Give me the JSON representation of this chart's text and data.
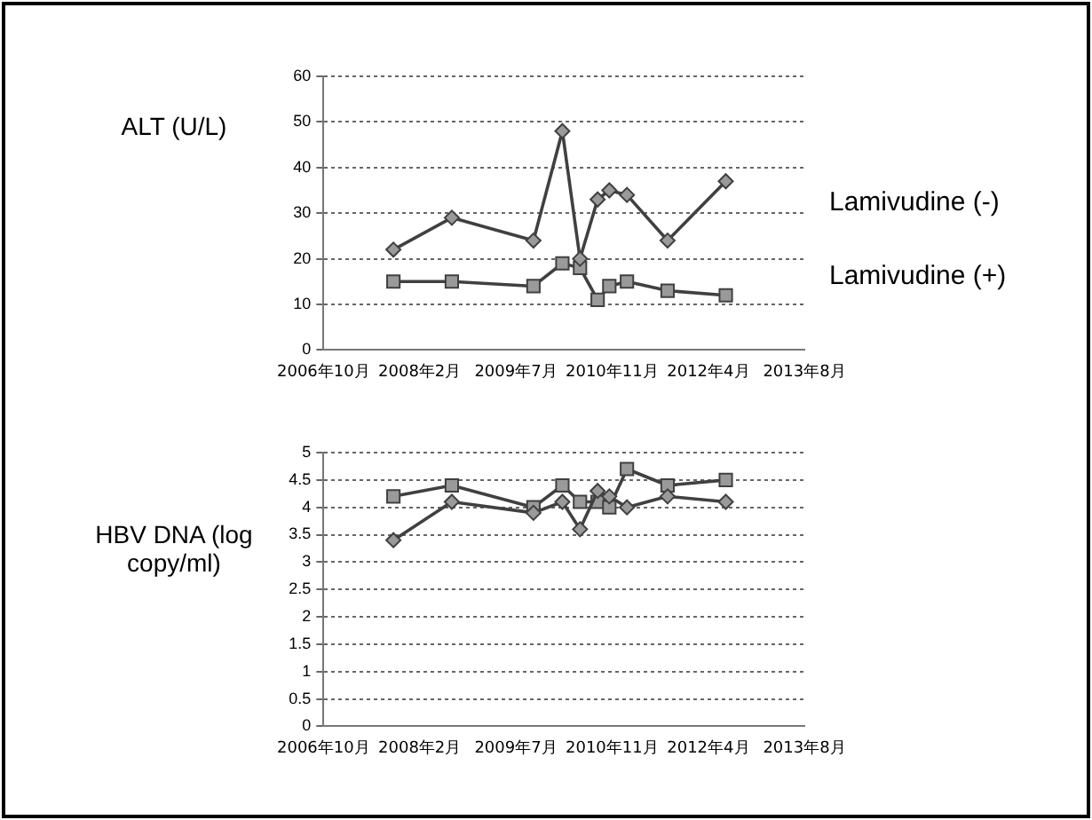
{
  "chart_data": [
    {
      "type": "line",
      "ylabel": "ALT (U/L)",
      "x": [
        "2007-10",
        "2008-08",
        "2009-10",
        "2010-03",
        "2010-06",
        "2010-09",
        "2010-11",
        "2011-02",
        "2011-09",
        "2012-07"
      ],
      "series": [
        {
          "name": "Lamivudine (-)",
          "color": "#404040",
          "marker": "diamond",
          "values": [
            22,
            29,
            24,
            48,
            20,
            33,
            35,
            34,
            24,
            37
          ]
        },
        {
          "name": "Lamivudine (+)",
          "color": "#404040",
          "marker": "square",
          "values": [
            15,
            15,
            14,
            19,
            18,
            11,
            14,
            15,
            13,
            12
          ]
        }
      ],
      "xlim": [
        "2006-10-01",
        "2013-08-15"
      ],
      "xticks": [
        {
          "value": "2006-10-01",
          "label": "2006年10月"
        },
        {
          "value": "2008-02-15",
          "label": "2008年2月"
        },
        {
          "value": "2009-07-01",
          "label": "2009年7月"
        },
        {
          "value": "2010-11-15",
          "label": "2010年11月"
        },
        {
          "value": "2012-04-01",
          "label": "2012年4月"
        },
        {
          "value": "2013-08-15",
          "label": "2013年8月"
        }
      ],
      "ylim": [
        0,
        60
      ],
      "yticks": [
        0,
        10,
        20,
        30,
        40,
        50,
        60
      ],
      "grid": "y",
      "legend": false
    },
    {
      "type": "line",
      "ylabel": "HBV DNA (log copy/ml)",
      "x": [
        "2007-10",
        "2008-08",
        "2009-10",
        "2010-03",
        "2010-06",
        "2010-09",
        "2010-11",
        "2011-02",
        "2011-09",
        "2012-07"
      ],
      "series": [
        {
          "color": "#404040",
          "marker": "diamond",
          "values": [
            3.4,
            4.1,
            3.9,
            4.1,
            3.6,
            4.3,
            4.2,
            4.0,
            4.2,
            4.1
          ]
        },
        {
          "color": "#404040",
          "marker": "square",
          "values": [
            4.2,
            4.4,
            4.0,
            4.4,
            4.1,
            4.1,
            4.0,
            4.7,
            4.4,
            4.5
          ]
        }
      ],
      "xlim": [
        "2006-10-01",
        "2013-08-15"
      ],
      "xticks": [
        {
          "value": "2006-10-01",
          "label": "2006年10月"
        },
        {
          "value": "2008-02-15",
          "label": "2008年2月"
        },
        {
          "value": "2009-07-01",
          "label": "2009年7月"
        },
        {
          "value": "2010-11-15",
          "label": "2010年11月"
        },
        {
          "value": "2012-04-01",
          "label": "2012年4月"
        },
        {
          "value": "2013-08-15",
          "label": "2013年8月"
        }
      ],
      "ylim": [
        0,
        5
      ],
      "yticks": [
        0,
        0.5,
        1,
        1.5,
        2,
        2.5,
        3,
        3.5,
        4,
        4.5,
        5
      ],
      "grid": "y",
      "legend": false
    }
  ]
}
